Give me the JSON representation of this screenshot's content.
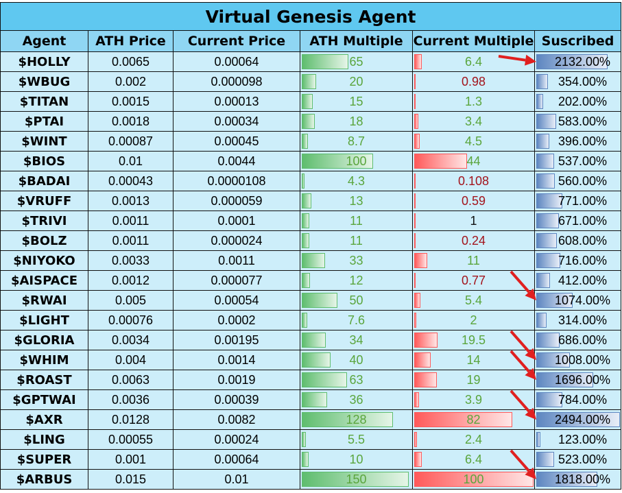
{
  "title": "Virtual Genesis Agent",
  "headers": [
    "Agent",
    "ATH Price",
    "Current Price",
    "ATH Multiple",
    "Current Multiple",
    "Suscribed"
  ],
  "max": {
    "ath_multiple": 150,
    "current_multiple": 100,
    "subscribed": 2494
  },
  "colors": {
    "title_bg": "#5fc8f0",
    "header_bg": "#8fd6f3",
    "row_bg": "#cdeefa",
    "green_text": "#5aa53c",
    "red_text": "#a3141c",
    "arrow": "#e02020"
  },
  "rows": [
    {
      "agent": "$HOLLY",
      "ath_price": "0.0065",
      "current_price": "0.00064",
      "ath_multiple": "65",
      "current_multiple": "6.4",
      "subscribed": "2132.00%",
      "arrow": true
    },
    {
      "agent": "$WBUG",
      "ath_price": "0.002",
      "current_price": "0.000098",
      "ath_multiple": "20",
      "current_multiple": "0.98",
      "subscribed": "354.00%"
    },
    {
      "agent": "$TITAN",
      "ath_price": "0.0015",
      "current_price": "0.00013",
      "ath_multiple": "15",
      "current_multiple": "1.3",
      "subscribed": "202.00%"
    },
    {
      "agent": "$PTAI",
      "ath_price": "0.0018",
      "current_price": "0.00034",
      "ath_multiple": "18",
      "current_multiple": "3.4",
      "subscribed": "583.00%"
    },
    {
      "agent": "$WINT",
      "ath_price": "0.00087",
      "current_price": "0.00045",
      "ath_multiple": "8.7",
      "current_multiple": "4.5",
      "subscribed": "396.00%"
    },
    {
      "agent": "$BIOS",
      "ath_price": "0.01",
      "current_price": "0.0044",
      "ath_multiple": "100",
      "current_multiple": "44",
      "subscribed": "537.00%"
    },
    {
      "agent": "$BADAI",
      "ath_price": "0.00043",
      "current_price": "0.0000108",
      "ath_multiple": "4.3",
      "current_multiple": "0.108",
      "subscribed": "560.00%"
    },
    {
      "agent": "$VRUFF",
      "ath_price": "0.0013",
      "current_price": "0.000059",
      "ath_multiple": "13",
      "current_multiple": "0.59",
      "subscribed": "771.00%"
    },
    {
      "agent": "$TRIVI",
      "ath_price": "0.0011",
      "current_price": "0.0001",
      "ath_multiple": "11",
      "current_multiple": "1",
      "subscribed": "671.00%"
    },
    {
      "agent": "$BOLZ",
      "ath_price": "0.0011",
      "current_price": "0.000024",
      "ath_multiple": "11",
      "current_multiple": "0.24",
      "subscribed": "608.00%"
    },
    {
      "agent": "$NIYOKO",
      "ath_price": "0.0033",
      "current_price": "0.0011",
      "ath_multiple": "33",
      "current_multiple": "11",
      "subscribed": "716.00%"
    },
    {
      "agent": "$AISPACE",
      "ath_price": "0.0012",
      "current_price": "0.000077",
      "ath_multiple": "12",
      "current_multiple": "0.77",
      "subscribed": "412.00%"
    },
    {
      "agent": "$RWAI",
      "ath_price": "0.005",
      "current_price": "0.00054",
      "ath_multiple": "50",
      "current_multiple": "5.4",
      "subscribed": "1074.00%",
      "arrow": true
    },
    {
      "agent": "$LIGHT",
      "ath_price": "0.00076",
      "current_price": "0.0002",
      "ath_multiple": "7.6",
      "current_multiple": "2",
      "subscribed": "314.00%"
    },
    {
      "agent": "$GLORIA",
      "ath_price": "0.0034",
      "current_price": "0.00195",
      "ath_multiple": "34",
      "current_multiple": "19.5",
      "subscribed": "686.00%"
    },
    {
      "agent": "$WHIM",
      "ath_price": "0.004",
      "current_price": "0.0014",
      "ath_multiple": "40",
      "current_multiple": "14",
      "subscribed": "1008.00%",
      "arrow": true
    },
    {
      "agent": "$ROAST",
      "ath_price": "0.0063",
      "current_price": "0.0019",
      "ath_multiple": "63",
      "current_multiple": "19",
      "subscribed": "1696.00%",
      "arrow": true
    },
    {
      "agent": "$GPTWAI",
      "ath_price": "0.0036",
      "current_price": "0.00039",
      "ath_multiple": "36",
      "current_multiple": "3.9",
      "subscribed": "784.00%"
    },
    {
      "agent": "$AXR",
      "ath_price": "0.0128",
      "current_price": "0.0082",
      "ath_multiple": "128",
      "current_multiple": "82",
      "subscribed": "2494.00%",
      "arrow": true
    },
    {
      "agent": "$LING",
      "ath_price": "0.00055",
      "current_price": "0.00024",
      "ath_multiple": "5.5",
      "current_multiple": "2.4",
      "subscribed": "123.00%"
    },
    {
      "agent": "$SUPER",
      "ath_price": "0.001",
      "current_price": "0.00064",
      "ath_multiple": "10",
      "current_multiple": "6.4",
      "subscribed": "523.00%"
    },
    {
      "agent": "$ARBUS",
      "ath_price": "0.015",
      "current_price": "0.01",
      "ath_multiple": "150",
      "current_multiple": "100",
      "subscribed": "1818.00%",
      "arrow": true
    }
  ]
}
